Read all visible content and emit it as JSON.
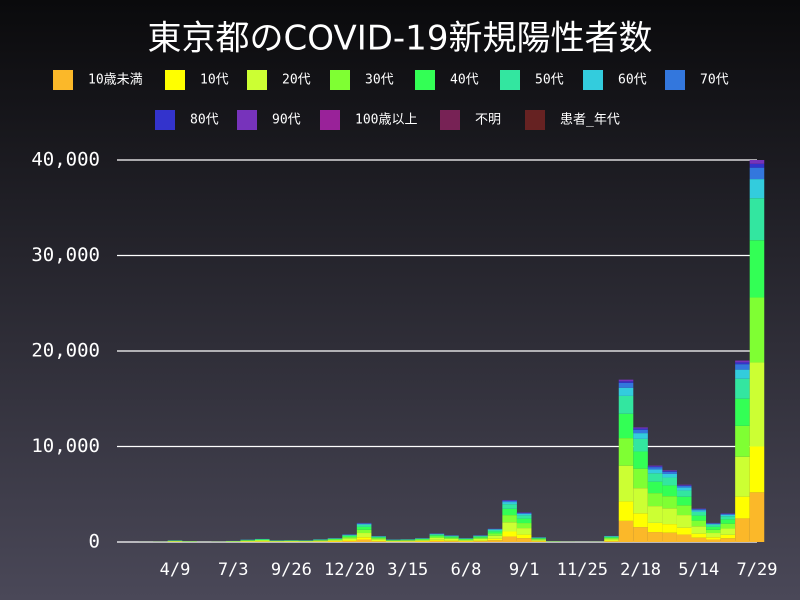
{
  "chart_data": {
    "type": "stacked-bar",
    "title": "東京都のCOVID-19新規陽性者数",
    "categories": [
      null,
      null,
      "4/9",
      null,
      null,
      null,
      "7/3",
      null,
      null,
      null,
      "9/26",
      null,
      null,
      null,
      "12/20",
      null,
      null,
      null,
      "3/15",
      null,
      null,
      null,
      "6/8",
      null,
      null,
      null,
      "9/1",
      null,
      null,
      null,
      "11/25",
      null,
      null,
      null,
      "2/18",
      null,
      null,
      null,
      "5/14",
      null,
      null,
      null,
      "7/29"
    ],
    "series": [
      {
        "name": "10歳未満",
        "color": "#fbb829",
        "values": [
          1,
          4,
          23,
          13,
          1,
          4,
          16,
          34,
          43,
          23,
          26,
          23,
          38,
          55,
          104,
          260,
          82,
          35,
          39,
          52,
          117,
          91,
          52,
          91,
          182,
          572,
          403,
          65,
          10,
          4,
          3,
          4,
          83,
          2210,
          1560,
          1040,
          975,
          780,
          455,
          260,
          390,
          2470,
          5200
        ]
      },
      {
        "name": "10代",
        "color": "#ffff00",
        "values": [
          1,
          4,
          22,
          12,
          1,
          4,
          14,
          31,
          40,
          22,
          24,
          22,
          35,
          50,
          96,
          240,
          76,
          32,
          36,
          48,
          108,
          84,
          48,
          84,
          168,
          528,
          372,
          60,
          10,
          4,
          2,
          4,
          77,
          2040,
          1440,
          960,
          900,
          720,
          420,
          240,
          360,
          2280,
          4800
        ]
      },
      {
        "name": "20代",
        "color": "#ccff33",
        "values": [
          2,
          7,
          40,
          22,
          2,
          7,
          26,
          57,
          73,
          40,
          44,
          40,
          64,
          92,
          176,
          440,
          139,
          59,
          66,
          88,
          198,
          154,
          88,
          154,
          308,
          968,
          682,
          110,
          18,
          7,
          4,
          7,
          141,
          3740,
          2640,
          1760,
          1650,
          1320,
          770,
          440,
          660,
          4180,
          8800
        ]
      },
      {
        "name": "30代",
        "color": "#7fff33",
        "values": [
          2,
          5,
          31,
          17,
          2,
          5,
          20,
          44,
          56,
          31,
          34,
          31,
          49,
          71,
          136,
          340,
          107,
          46,
          51,
          68,
          153,
          119,
          68,
          119,
          238,
          748,
          527,
          85,
          14,
          5,
          3,
          5,
          109,
          2890,
          2040,
          1360,
          1275,
          1020,
          595,
          340,
          510,
          3230,
          6800
        ]
      },
      {
        "name": "40代",
        "color": "#33ff55",
        "values": [
          2,
          4,
          27,
          15,
          2,
          4,
          18,
          39,
          50,
          27,
          30,
          27,
          43,
          63,
          120,
          300,
          94,
          41,
          45,
          60,
          135,
          105,
          60,
          105,
          210,
          660,
          465,
          75,
          12,
          4,
          3,
          4,
          96,
          2550,
          1800,
          1200,
          1125,
          900,
          525,
          300,
          450,
          2850,
          6000
        ]
      },
      {
        "name": "50代",
        "color": "#33e6a0",
        "values": [
          1,
          3,
          20,
          11,
          1,
          3,
          13,
          29,
          36,
          20,
          22,
          20,
          32,
          46,
          88,
          220,
          69,
          30,
          33,
          44,
          99,
          77,
          44,
          77,
          154,
          484,
          341,
          55,
          9,
          3,
          2,
          3,
          70,
          1870,
          1320,
          880,
          825,
          660,
          385,
          220,
          330,
          2090,
          4400
        ]
      },
      {
        "name": "60代",
        "color": "#33ccdd",
        "values": [
          1,
          2,
          9,
          5,
          1,
          2,
          6,
          13,
          16,
          9,
          10,
          9,
          15,
          21,
          40,
          100,
          32,
          14,
          15,
          20,
          45,
          35,
          20,
          35,
          70,
          220,
          155,
          25,
          4,
          2,
          1,
          2,
          32,
          850,
          600,
          400,
          375,
          300,
          175,
          100,
          150,
          950,
          2000
        ]
      },
      {
        "name": "70代",
        "color": "#3377dd",
        "values": [
          0,
          1,
          5,
          3,
          0,
          1,
          4,
          8,
          10,
          5,
          6,
          5,
          9,
          13,
          24,
          60,
          19,
          8,
          9,
          12,
          27,
          21,
          12,
          21,
          42,
          132,
          93,
          15,
          2,
          1,
          1,
          1,
          19,
          510,
          360,
          240,
          225,
          180,
          105,
          60,
          90,
          570,
          1200
        ]
      },
      {
        "name": "80代",
        "color": "#3333cc",
        "values": [
          0,
          0,
          2,
          1,
          0,
          0,
          2,
          3,
          3,
          2,
          2,
          2,
          3,
          5,
          8,
          20,
          6,
          3,
          3,
          4,
          9,
          7,
          4,
          7,
          14,
          44,
          31,
          5,
          1,
          0,
          1,
          0,
          7,
          170,
          120,
          80,
          75,
          60,
          35,
          20,
          30,
          190,
          400
        ]
      },
      {
        "name": "90代",
        "color": "#7733bb",
        "values": [
          0,
          0,
          1,
          1,
          0,
          0,
          1,
          2,
          3,
          1,
          2,
          1,
          2,
          4,
          8,
          20,
          6,
          2,
          3,
          4,
          9,
          7,
          4,
          7,
          14,
          44,
          31,
          5,
          0,
          0,
          0,
          0,
          6,
          170,
          120,
          80,
          75,
          60,
          35,
          20,
          30,
          190,
          400
        ]
      },
      {
        "name": "100歳以上",
        "color": "#992299",
        "values": [
          0,
          0,
          0,
          0,
          0,
          0,
          0,
          0,
          0,
          0,
          0,
          0,
          0,
          0,
          0,
          0,
          0,
          0,
          0,
          0,
          0,
          0,
          0,
          0,
          0,
          0,
          0,
          0,
          0,
          0,
          0,
          0,
          0,
          0,
          0,
          0,
          0,
          0,
          0,
          0,
          0,
          0,
          0
        ]
      },
      {
        "name": "不明",
        "color": "#772255",
        "values": [
          0,
          0,
          0,
          0,
          0,
          0,
          0,
          0,
          0,
          0,
          0,
          0,
          0,
          0,
          0,
          0,
          0,
          0,
          0,
          0,
          0,
          0,
          0,
          0,
          0,
          0,
          0,
          0,
          0,
          0,
          0,
          0,
          0,
          0,
          0,
          0,
          0,
          0,
          0,
          0,
          0,
          0,
          0
        ]
      },
      {
        "name": "患者_年代",
        "color": "#662222",
        "values": [
          0,
          0,
          0,
          0,
          0,
          0,
          0,
          0,
          0,
          0,
          0,
          0,
          0,
          0,
          0,
          0,
          0,
          0,
          0,
          0,
          0,
          0,
          0,
          0,
          0,
          0,
          0,
          0,
          0,
          0,
          0,
          0,
          0,
          0,
          0,
          0,
          0,
          0,
          0,
          0,
          0,
          0,
          0
        ]
      }
    ],
    "ylim": [
      0,
      40000
    ],
    "yticks": [
      0,
      {
        "value": 10000,
        "label": "10,000"
      },
      {
        "value": 20000,
        "label": "20,000"
      },
      {
        "value": 30000,
        "label": "30,000"
      },
      {
        "value": 40000,
        "label": "40,000"
      }
    ],
    "grid": true
  }
}
